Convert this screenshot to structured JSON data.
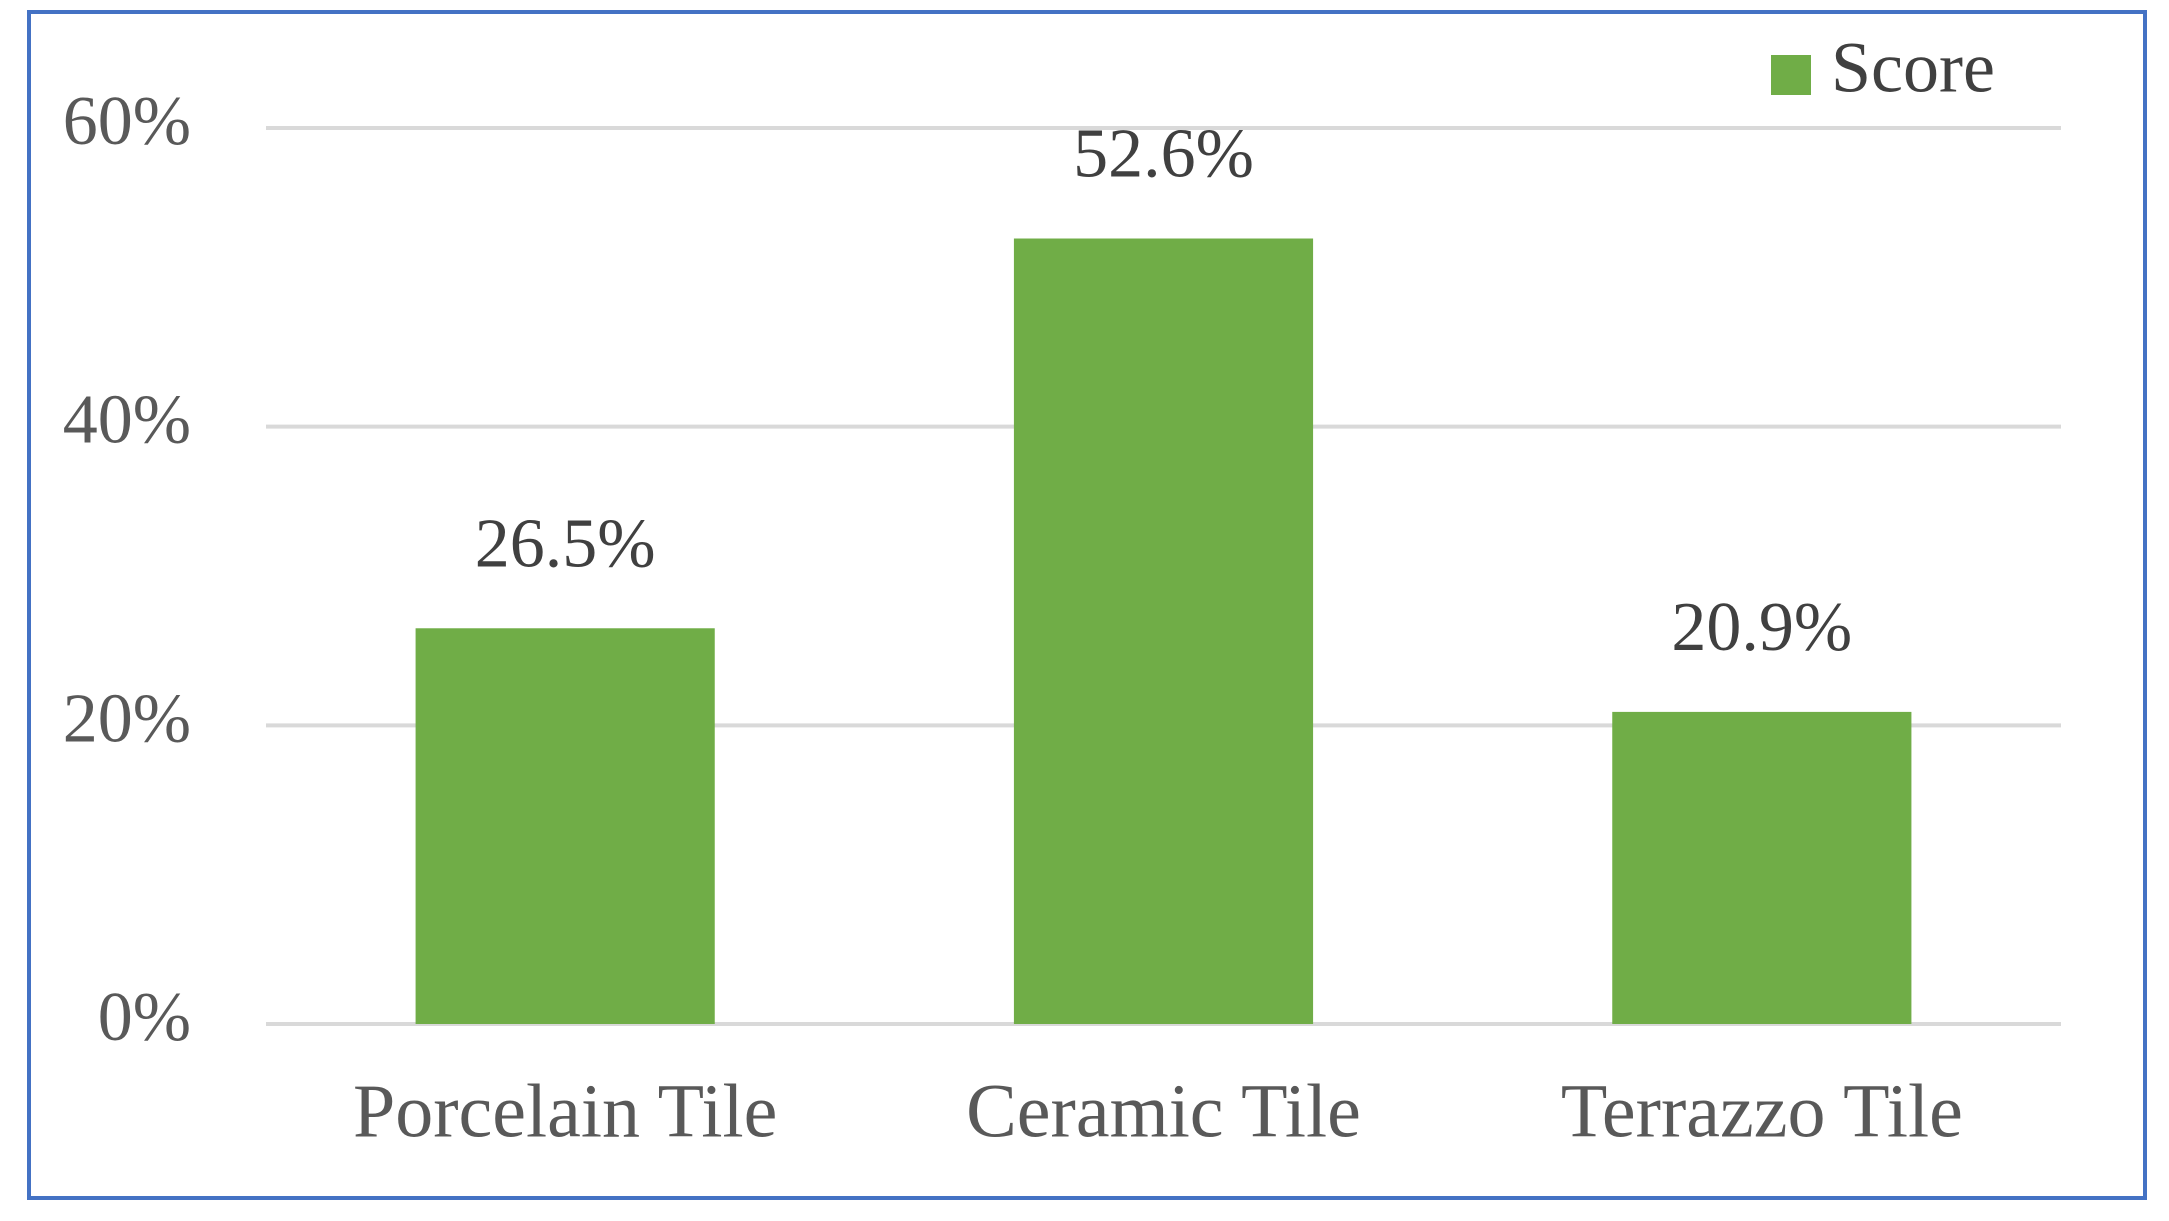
{
  "chart_data": {
    "type": "bar",
    "categories": [
      "Porcelain Tile",
      "Ceramic Tile",
      "Terrazzo Tile"
    ],
    "series": [
      {
        "name": "Score",
        "color": "#70ad47",
        "values": [
          26.5,
          52.6,
          20.9
        ],
        "value_labels": [
          "26.5%",
          "52.6%",
          "20.9%"
        ]
      }
    ],
    "ylim": [
      0,
      60
    ],
    "yticks": [
      {
        "value": 0,
        "label": "0%"
      },
      {
        "value": 20,
        "label": "20%"
      },
      {
        "value": 40,
        "label": "40%"
      },
      {
        "value": 60,
        "label": "60%"
      }
    ],
    "grid": true,
    "legend": "top-right"
  }
}
